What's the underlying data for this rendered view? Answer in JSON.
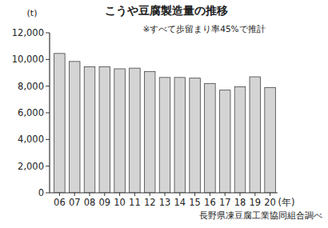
{
  "chart_data": {
    "type": "bar",
    "title": "こうや豆腐製造量の推移",
    "ylabel": "(t)",
    "xlabel": "(年)",
    "annotations": [
      "※すべて歩留まり率45%で推計",
      "長野県凍豆腐工業協同組合調べ"
    ],
    "categories": [
      "06",
      "07",
      "08",
      "09",
      "10",
      "11",
      "12",
      "13",
      "14",
      "15",
      "16",
      "17",
      "18",
      "19",
      "20"
    ],
    "values": [
      10450,
      9850,
      9450,
      9450,
      9300,
      9350,
      9100,
      8650,
      8650,
      8600,
      8200,
      7700,
      7950,
      8700,
      7900
    ],
    "color": "#d4d4d4",
    "ylim": [
      0,
      12000
    ],
    "yticks": [
      0,
      {
        "value": 2000,
        "label": "2,000"
      },
      {
        "value": 4000,
        "label": "4,000"
      },
      {
        "value": 6000,
        "label": "6,000"
      },
      {
        "value": 8000,
        "label": "8,000"
      },
      {
        "value": 10000,
        "label": "10,000"
      },
      {
        "value": 12000,
        "label": "12,000"
      }
    ],
    "grid": false
  }
}
